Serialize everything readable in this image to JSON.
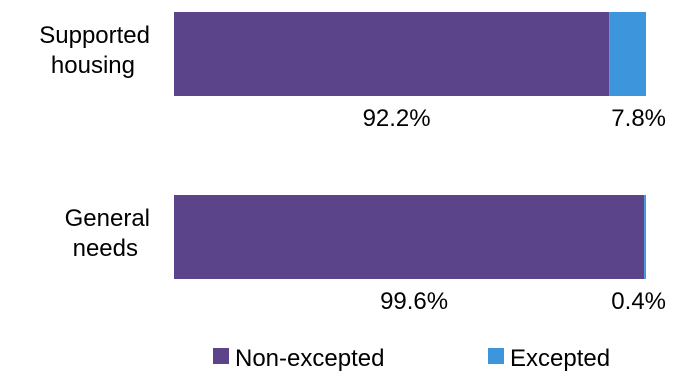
{
  "chart_data": {
    "type": "bar",
    "orientation": "horizontal",
    "stacked": true,
    "normalized": true,
    "categories": [
      [
        "Supported",
        "housing"
      ],
      [
        "General",
        "needs"
      ]
    ],
    "series": [
      {
        "name": "Non-excepted",
        "color": "#5b4489",
        "values": [
          92.2,
          99.6
        ],
        "labels": [
          "92.2%",
          "99.6%"
        ]
      },
      {
        "name": "Excepted",
        "color": "#3d95dc",
        "values": [
          7.8,
          0.4
        ],
        "labels": [
          "7.8%",
          "0.4%"
        ]
      }
    ],
    "xlim": [
      0,
      100
    ],
    "grid": false,
    "legend": {
      "position": "bottom"
    },
    "title": "",
    "xlabel": "",
    "ylabel": ""
  }
}
